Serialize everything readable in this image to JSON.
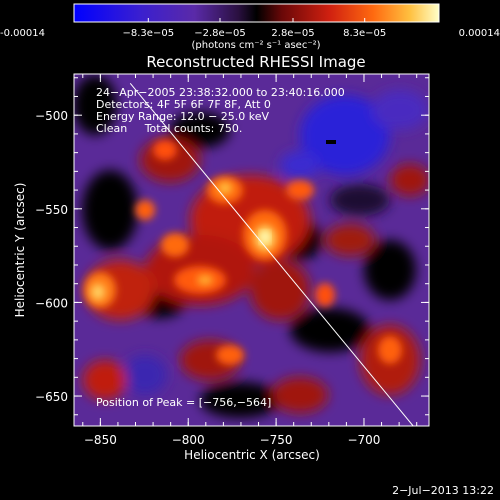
{
  "colorbar": {
    "ticks": [
      "-0.00014",
      "−8.3e−05",
      "−2.8e−05",
      "2.8e−05",
      "8.3e−05",
      "0.00014"
    ],
    "tick_values": [
      -0.00014,
      -8.3e-05,
      -2.8e-05,
      2.8e-05,
      8.3e-05,
      0.00014
    ],
    "range": [
      -0.00014,
      0.00014
    ],
    "unit_label": "(photons cm⁻² s⁻¹ asec⁻²)"
  },
  "title": "Reconstructed RHESSI Image",
  "info": {
    "time_range": "24−Apr−2005 23:38:32.000 to 23:40:16.000",
    "detectors": "Detectors: 4F 5F 6F 7F 8F, Att 0",
    "energy": "Energy Range: 12.0 − 25.0 keV",
    "clean": "Clean     Total counts: 750.",
    "peak": "Position of Peak = [−756,−564]"
  },
  "axes": {
    "xlabel": "Heliocentric X (arcsec)",
    "ylabel": "Heliocentric Y (arcsec)",
    "xlim": [
      -865,
      -663
    ],
    "ylim": [
      -666,
      -478
    ],
    "xticks": [
      -850,
      -800,
      -750,
      -700
    ],
    "xtick_labels": [
      "−850",
      "−800",
      "−750",
      "−700"
    ],
    "yticks": [
      -650,
      -600,
      -550,
      -500
    ],
    "ytick_labels": [
      "−650",
      "−600",
      "−550",
      "−500"
    ]
  },
  "peak_position": [
    -756,
    -564
  ],
  "limb_line": [
    [
      -833,
      -483
    ],
    [
      -672,
      -666
    ]
  ],
  "footer": {
    "date": "2−Jul−2013 13:22"
  },
  "colors": {
    "colormap": [
      "#0000ff",
      "#3a1fd0",
      "#5a2aa8",
      "#3a1a50",
      "#000000",
      "#5a0a0a",
      "#c41a0a",
      "#ff5a10",
      "#ffb030",
      "#ffffc0"
    ],
    "background": "#000000",
    "foreground": "#ffffff"
  }
}
